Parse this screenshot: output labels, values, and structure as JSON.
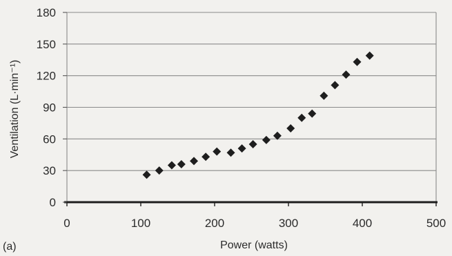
{
  "chart_data": {
    "type": "scatter",
    "panel_label": "(a)",
    "xlabel": "Power (watts)",
    "ylabel": "Ventilation (L·min⁻¹)",
    "xlim": [
      0,
      500
    ],
    "ylim": [
      0,
      180
    ],
    "xticks": [
      0,
      100,
      200,
      300,
      400,
      500
    ],
    "yticks": [
      0,
      30,
      60,
      90,
      120,
      150,
      180
    ],
    "grid": "horizontal",
    "legend": "none",
    "marker": "diamond",
    "marker_color": "#1e1e1e",
    "series": [
      {
        "x": [
          108,
          125,
          142,
          155,
          172,
          188,
          203,
          222,
          237,
          252,
          270,
          285,
          303,
          318,
          332,
          348,
          363,
          378,
          393,
          410
        ],
        "y": [
          26,
          30,
          35,
          36,
          39,
          43,
          48,
          47,
          51,
          55,
          59,
          63,
          70,
          80,
          84,
          101,
          111,
          121,
          133,
          139
        ]
      }
    ]
  }
}
